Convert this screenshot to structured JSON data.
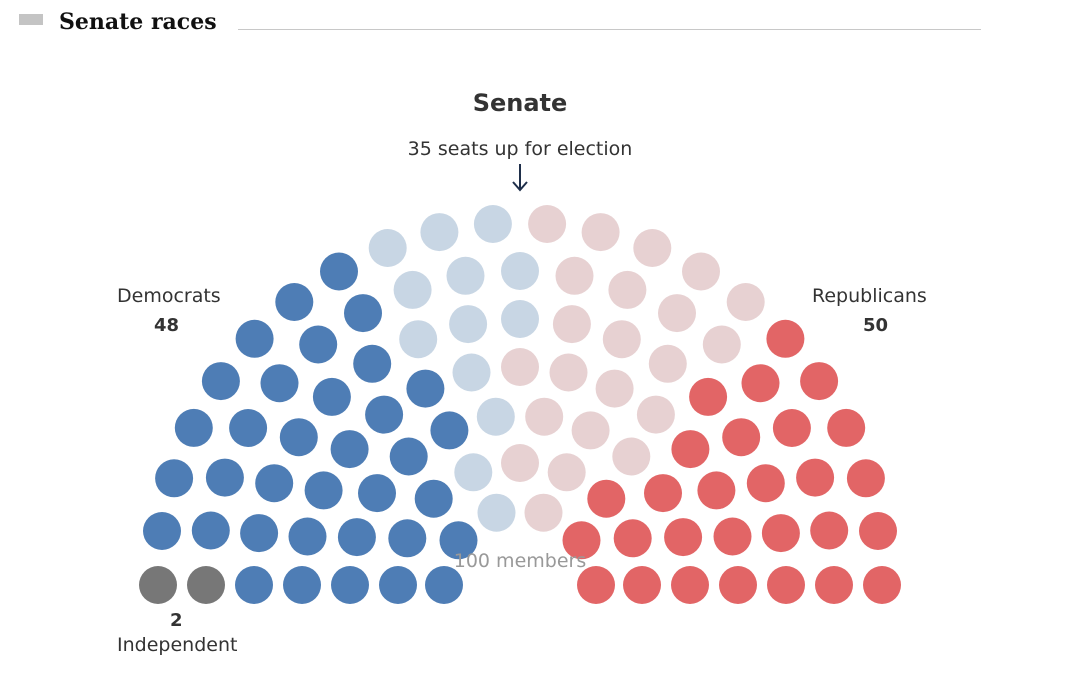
{
  "header": {
    "section_title": "Senate races"
  },
  "chart_data": {
    "type": "parliament",
    "title": "Senate",
    "subtitle": "35 seats up for election",
    "center_label": "100 members",
    "total_seats": 100,
    "seats_up_for_election": 35,
    "parties": [
      {
        "name": "Democrats",
        "count_label": "48",
        "seats": 48,
        "seats_up": 13,
        "color": "#4e7db5",
        "up_color": "#c8d6e4"
      },
      {
        "name": "Independent",
        "count_label": "2",
        "seats": 2,
        "seats_up": 0,
        "color": "#777777",
        "up_color": "#cccccc"
      },
      {
        "name": "Republicans",
        "count_label": "50",
        "seats": 50,
        "seats_up": 22,
        "color": "#e26566",
        "up_color": "#e7d1d2"
      }
    ]
  }
}
